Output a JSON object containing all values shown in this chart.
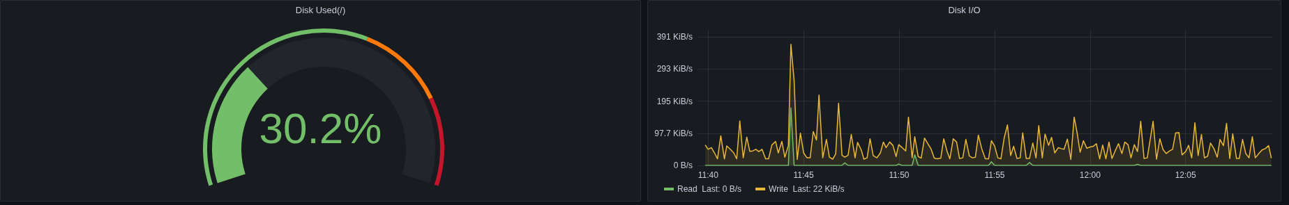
{
  "chart_data": [
    {
      "type": "donut",
      "title": "Disk Used(/)",
      "series": [
        {
          "values": [
            30.2,
            69.8
          ],
          "colors": [
            "#73bf69",
            "#22252b"
          ]
        },
        {
          "values": [
            60,
            20,
            20
          ],
          "colors": [
            "#73bf69",
            "#ff780a",
            "#c4162a"
          ]
        }
      ],
      "annotations": [
        "30.2%"
      ]
    },
    {
      "type": "area",
      "title": "Disk I/O",
      "xlim": [
        11.658,
        12.159
      ],
      "xticks": [
        {
          "value": 11.6667,
          "label": "11:40"
        },
        {
          "value": 11.75,
          "label": "11:45"
        },
        {
          "value": 11.8333,
          "label": "11:50"
        },
        {
          "value": 11.9167,
          "label": "11:55"
        },
        {
          "value": 12,
          "label": "12:00"
        },
        {
          "value": 12.0833,
          "label": "12:05"
        }
      ],
      "ylim": [
        0,
        412
      ],
      "yticks": [
        {
          "value": 0,
          "label": "0 B/s"
        },
        {
          "value": 97.7,
          "label": "97.7 KiB/s"
        },
        {
          "value": 195,
          "label": "195 KiB/s"
        },
        {
          "value": 293,
          "label": "293 KiB/s"
        },
        {
          "value": 391,
          "label": "391 KiB/s"
        }
      ],
      "grid": true,
      "legend": "bottom left",
      "series": [
        {
          "name": "Read  Last: 0 B/s",
          "color": "#73bf69",
          "x": [
            11.6641,
            11.7367,
            11.7389,
            11.7417,
            11.7835,
            11.7859,
            11.7888,
            11.8307,
            11.833,
            11.836,
            11.8447,
            11.847,
            11.85,
            11.9114,
            11.9139,
            11.9167,
            11.9443,
            11.9471,
            11.95,
            12.0386,
            12.0414,
            12.0442,
            12.1582
          ],
          "values": [
            0,
            0,
            175,
            0,
            0,
            8,
            0,
            0,
            4,
            0,
            0,
            32,
            0,
            0,
            11,
            0,
            0,
            9,
            0,
            0,
            3,
            0,
            0
          ]
        },
        {
          "name": "Write  Last: 22 KiB/s",
          "color": "#eab839",
          "x": [
            11.6641,
            11.6667,
            11.6695,
            11.6722,
            11.6748,
            11.6777,
            11.6809,
            11.6829,
            11.686,
            11.689,
            11.6916,
            11.6943,
            11.6973,
            11.7004,
            11.703,
            11.7056,
            11.7083,
            11.7109,
            11.7137,
            11.7168,
            11.7194,
            11.7223,
            11.7255,
            11.7279,
            11.731,
            11.7336,
            11.7367,
            11.7389,
            11.7417,
            11.7444,
            11.7472,
            11.75,
            11.7529,
            11.7557,
            11.7584,
            11.7612,
            11.7634,
            11.7667,
            11.7699,
            11.7725,
            11.7754,
            11.778,
            11.7805,
            11.7835,
            11.7859,
            11.7888,
            11.7916,
            11.7949,
            11.7971,
            11.8003,
            11.8026,
            11.8054,
            11.808,
            11.8107,
            11.8139,
            11.817,
            11.8196,
            11.822,
            11.8251,
            11.8279,
            11.8307,
            11.833,
            11.836,
            11.8391,
            11.8415,
            11.8447,
            11.847,
            11.85,
            11.8526,
            11.8555,
            11.8583,
            11.8612,
            11.864,
            11.8666,
            11.8697,
            11.8723,
            11.8751,
            11.8776,
            11.8806,
            11.8835,
            11.8861,
            11.8889,
            11.8916,
            11.8946,
            11.8974,
            11.8999,
            11.9025,
            11.9056,
            11.9086,
            11.9114,
            11.9139,
            11.9167,
            11.9195,
            11.9222,
            11.925,
            11.9279,
            11.9307,
            11.9333,
            11.9362,
            11.939,
            11.9412,
            11.9443,
            11.9471,
            11.95,
            11.9528,
            11.9552,
            11.9583,
            11.9607,
            11.9638,
            11.9664,
            11.9692,
            11.9723,
            11.9749,
            11.9773,
            11.9802,
            11.9832,
            11.9861,
            11.9887,
            11.9913,
            11.9942,
            11.9972,
            12.0,
            12.0027,
            12.0055,
            12.0084,
            12.011,
            12.0138,
            12.0165,
            12.0191,
            12.0219,
            12.0248,
            12.0278,
            12.0303,
            12.0331,
            12.0357,
            12.0386,
            12.0414,
            12.0442,
            12.0471,
            12.0499,
            12.055,
            12.058,
            12.0609,
            12.0637,
            12.0665,
            12.0694,
            12.072,
            12.0747,
            12.0775,
            12.0803,
            12.0834,
            12.086,
            12.0887,
            12.0915,
            12.0943,
            12.0972,
            12.0998,
            12.1026,
            12.1051,
            12.1081,
            12.111,
            12.1134,
            12.1164,
            12.1191,
            12.1219,
            12.1245,
            12.1278,
            12.1302,
            12.1331,
            12.1359,
            12.1387,
            12.1416,
            12.1442,
            12.1472,
            12.1501,
            12.1529,
            12.1558,
            12.1582
          ],
          "values": [
            62,
            49,
            54,
            38,
            20,
            90,
            20,
            59,
            49,
            38,
            20,
            135,
            23,
            86,
            43,
            44,
            49,
            42,
            49,
            20,
            20,
            62,
            73,
            38,
            73,
            25,
            61,
            368,
            258,
            18,
            98,
            38,
            23,
            23,
            103,
            77,
            214,
            23,
            79,
            25,
            19,
            35,
            189,
            31,
            25,
            31,
            94,
            23,
            70,
            47,
            19,
            23,
            81,
            30,
            23,
            38,
            71,
            54,
            71,
            61,
            27,
            63,
            54,
            44,
            147,
            23,
            87,
            27,
            22,
            83,
            67,
            50,
            22,
            20,
            22,
            81,
            44,
            20,
            81,
            71,
            21,
            23,
            79,
            29,
            23,
            25,
            92,
            49,
            20,
            20,
            75,
            59,
            23,
            20,
            83,
            123,
            30,
            58,
            21,
            23,
            99,
            21,
            21,
            68,
            23,
            121,
            23,
            95,
            61,
            85,
            38,
            54,
            51,
            49,
            80,
            18,
            147,
            99,
            40,
            75,
            52,
            56,
            58,
            66,
            20,
            62,
            20,
            71,
            21,
            44,
            66,
            36,
            71,
            63,
            23,
            63,
            42,
            134,
            21,
            23,
            134,
            19,
            81,
            48,
            36,
            44,
            49,
            99,
            100,
            32,
            42,
            61,
            23,
            130,
            30,
            94,
            23,
            28,
            68,
            51,
            25,
            79,
            60,
            128,
            21,
            96,
            21,
            21,
            79,
            36,
            23,
            87,
            23,
            36,
            47,
            51,
            60,
            22
          ]
        }
      ]
    }
  ]
}
